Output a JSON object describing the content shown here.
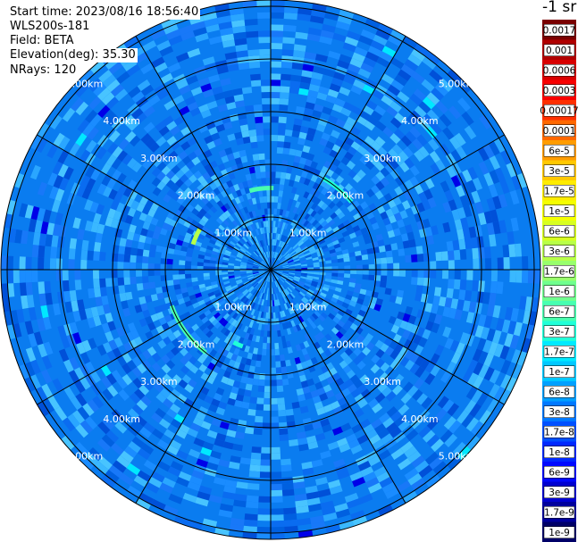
{
  "header": {
    "start_time": "Start time: 2023/08/16 18:56:40",
    "instrument": "WLS200s-181",
    "field": "Field: BETA",
    "elevation": "Elevation(deg): 35.30",
    "nrays": "NRays: 120"
  },
  "colorbar": {
    "title": "-1 sr",
    "ticks": [
      "0.0017",
      "0.001",
      "0.0006",
      "0.0003",
      "0.00017",
      "0.0001",
      "6e-5",
      "3e-5",
      "1.7e-5",
      "1e-5",
      "6e-6",
      "3e-6",
      "1.7e-6",
      "1e-6",
      "6e-7",
      "3e-7",
      "1.7e-7",
      "1e-7",
      "6e-8",
      "3e-8",
      "1.7e-8",
      "1e-8",
      "6e-9",
      "3e-9",
      "1.7e-9",
      "1e-9"
    ],
    "colors": [
      "#7a0000",
      "#b00000",
      "#d80000",
      "#f80000",
      "#ff3000",
      "#ff6800",
      "#ff9c00",
      "#ffc800",
      "#ffec00",
      "#f4ff00",
      "#d8ff20",
      "#b8ff48",
      "#98ff6c",
      "#70ff8e",
      "#48ffb0",
      "#20ffd8",
      "#00eaff",
      "#00c8ff",
      "#00a0ff",
      "#0078ff",
      "#0050ff",
      "#0028ff",
      "#0008ff",
      "#0000d0",
      "#00009c",
      "#000068"
    ]
  },
  "chart_data": {
    "type": "heatmap",
    "projection": "polar (PPI scan)",
    "range_rings": [
      "1.00km",
      "2.00km",
      "3.00km",
      "4.00km",
      "5.00km"
    ],
    "spokes_deg": [
      0,
      30,
      60,
      90,
      120,
      150,
      180,
      210,
      240,
      270,
      300,
      330
    ],
    "max_range_km": 5.0,
    "field": "BETA",
    "elevation_deg": 35.3,
    "n_rays": 120,
    "notable_echoes": [
      {
        "range_km": 1.55,
        "azimuth_deg": [
          -162,
          -150
        ],
        "value_class": "3e-6"
      },
      {
        "range_km": 1.55,
        "azimuth_deg": [
          -105,
          -88
        ],
        "value_class": "6e-7"
      },
      {
        "range_km": 1.55,
        "azimuth_deg": [
          -250,
          -243
        ],
        "value_class": "3e-7"
      },
      {
        "range_km": 2.0,
        "azimuth_deg": [
          -60,
          -40
        ],
        "value_class": "3e-7"
      },
      {
        "range_km": 2.0,
        "azimuth_deg": [
          128,
          160
        ],
        "value_class": "6e-7"
      }
    ]
  }
}
